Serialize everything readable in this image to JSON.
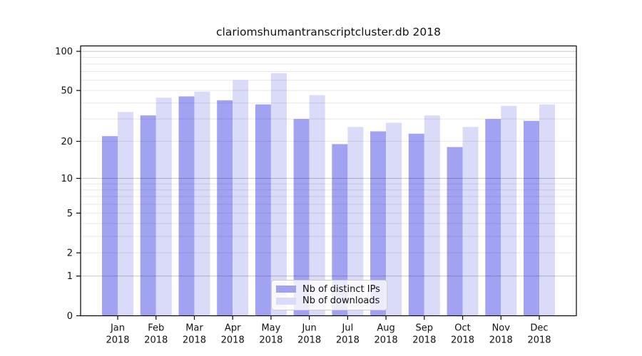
{
  "figure": {
    "background": "#ffffff",
    "text_color": "#111111",
    "axis_color": "#000000"
  },
  "chart_data": {
    "type": "bar",
    "title": "clariomshumantranscriptcluster.db 2018",
    "categories": [
      "Jan",
      "Feb",
      "Mar",
      "Apr",
      "May",
      "Jun",
      "Jul",
      "Aug",
      "Sep",
      "Oct",
      "Nov",
      "Dec"
    ],
    "x_tick_second_line": "2018",
    "series": [
      {
        "name": "Nb of distinct IPs",
        "color": "#a2a2f2",
        "values": [
          22,
          32,
          45,
          42,
          39,
          30,
          19,
          24,
          23,
          18,
          30,
          29
        ]
      },
      {
        "name": "Nb of downloads",
        "color": "#dadaf9",
        "values": [
          34,
          44,
          49,
          60,
          68,
          46,
          26,
          28,
          32,
          26,
          38,
          39
        ]
      }
    ],
    "xlabel": "",
    "ylabel": "",
    "y_ticks": [
      0,
      1,
      2,
      5,
      10,
      20,
      50,
      100
    ],
    "y_scale": "log1p",
    "ylim": [
      0,
      110
    ],
    "grid": {
      "on": true,
      "minor_values": [
        2,
        3,
        4,
        5,
        6,
        7,
        8,
        9,
        20,
        30,
        40,
        50,
        60,
        70,
        80,
        90
      ],
      "major_values": [
        1,
        10,
        100
      ]
    },
    "legend": {
      "position": "lower center"
    }
  }
}
